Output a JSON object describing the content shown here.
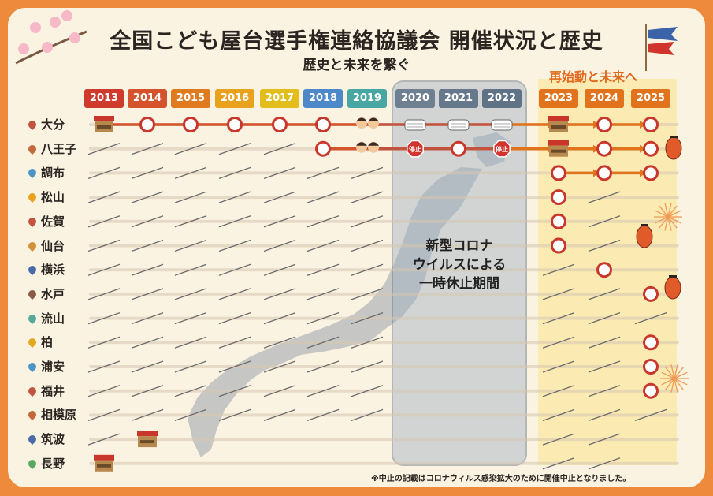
{
  "title": "全国こども屋台選手権連絡協議会 開催状況と歴史",
  "subtitle": "歴史と未来を繋ぐ",
  "restart_label": "再始動と未来へ",
  "covid_label": [
    "新型コロナ",
    "ウイルスによる",
    "一時休止期間"
  ],
  "stop_label": "停止",
  "footnote": "※中止の記載はコロナウィルス感染拡大のために開催中止となりました。",
  "years": [
    "2013",
    "2014",
    "2015",
    "2016",
    "2017",
    "2018",
    "2019",
    "2020",
    "2021",
    "2022",
    "2023",
    "2024",
    "2025"
  ],
  "year_colors": [
    "#cf3a2c",
    "#d4532c",
    "#e07a1e",
    "#e8a21e",
    "#e2bd1c",
    "#4d88c8",
    "#49a7a3",
    "#6d7f91",
    "#66788b",
    "#5f7286",
    "#e0731b",
    "#e0731b",
    "#e0731b"
  ],
  "cities": [
    {
      "name": "大分",
      "pin": "#c2543f",
      "marks": [
        "stall",
        "held",
        "held",
        "held",
        "held",
        "held",
        "kids",
        "mask",
        "mask",
        "mask",
        "stall",
        "held",
        "held"
      ]
    },
    {
      "name": "八王子",
      "pin": "#c26a3a",
      "marks": [
        "",
        "",
        "",
        "",
        "",
        "held",
        "kids",
        "stop",
        "heldred",
        "stop",
        "stall",
        "held",
        "held"
      ]
    },
    {
      "name": "調布",
      "pin": "#4d94c7",
      "marks": [
        "",
        "",
        "",
        "",
        "",
        "",
        "",
        "",
        "",
        "",
        "held",
        "held",
        "held"
      ]
    },
    {
      "name": "松山",
      "pin": "#e8a21e",
      "marks": [
        "",
        "",
        "",
        "",
        "",
        "",
        "",
        "",
        "",
        "",
        "held",
        "",
        ""
      ]
    },
    {
      "name": "佐賀",
      "pin": "#c2543f",
      "marks": [
        "",
        "",
        "",
        "",
        "",
        "",
        "",
        "",
        "",
        "",
        "held",
        "",
        ""
      ]
    },
    {
      "name": "仙台",
      "pin": "#d2913a",
      "marks": [
        "",
        "",
        "",
        "",
        "",
        "",
        "",
        "",
        "",
        "",
        "held",
        "",
        ""
      ]
    },
    {
      "name": "横浜",
      "pin": "#4a6aa8",
      "marks": [
        "",
        "",
        "",
        "",
        "",
        "",
        "",
        "",
        "",
        "",
        "",
        "held",
        ""
      ]
    },
    {
      "name": "水戸",
      "pin": "#8a5a44",
      "marks": [
        "",
        "",
        "",
        "",
        "",
        "",
        "",
        "",
        "",
        "",
        "",
        "",
        "held"
      ]
    },
    {
      "name": "流山",
      "pin": "#5aa89a",
      "marks": [
        "",
        "",
        "",
        "",
        "",
        "",
        "",
        "",
        "",
        "",
        "",
        "",
        ""
      ]
    },
    {
      "name": "柏",
      "pin": "#e2a820",
      "marks": [
        "",
        "",
        "",
        "",
        "",
        "",
        "",
        "",
        "",
        "",
        "",
        "",
        "held"
      ]
    },
    {
      "name": "浦安",
      "pin": "#4d94c7",
      "marks": [
        "",
        "",
        "",
        "",
        "",
        "",
        "",
        "",
        "",
        "",
        "",
        "",
        "held"
      ]
    },
    {
      "name": "福井",
      "pin": "#c2543f",
      "marks": [
        "",
        "",
        "",
        "",
        "",
        "",
        "",
        "",
        "",
        "",
        "",
        "",
        "held"
      ]
    },
    {
      "name": "相模原",
      "pin": "#c26a3a",
      "marks": [
        "",
        "",
        "",
        "",
        "",
        "",
        "",
        "",
        "",
        "",
        "",
        "",
        ""
      ]
    },
    {
      "name": "筑波",
      "pin": "#4a6aa8",
      "marks": [
        "",
        "stall",
        "",
        "",
        "",
        "",
        "",
        "",
        "",
        "",
        "",
        "",
        ""
      ]
    },
    {
      "name": "長野",
      "pin": "#5aa860",
      "marks": [
        "stall",
        "",
        "",
        "",
        "",
        "",
        "",
        "",
        "",
        "",
        "",
        "",
        ""
      ]
    }
  ]
}
